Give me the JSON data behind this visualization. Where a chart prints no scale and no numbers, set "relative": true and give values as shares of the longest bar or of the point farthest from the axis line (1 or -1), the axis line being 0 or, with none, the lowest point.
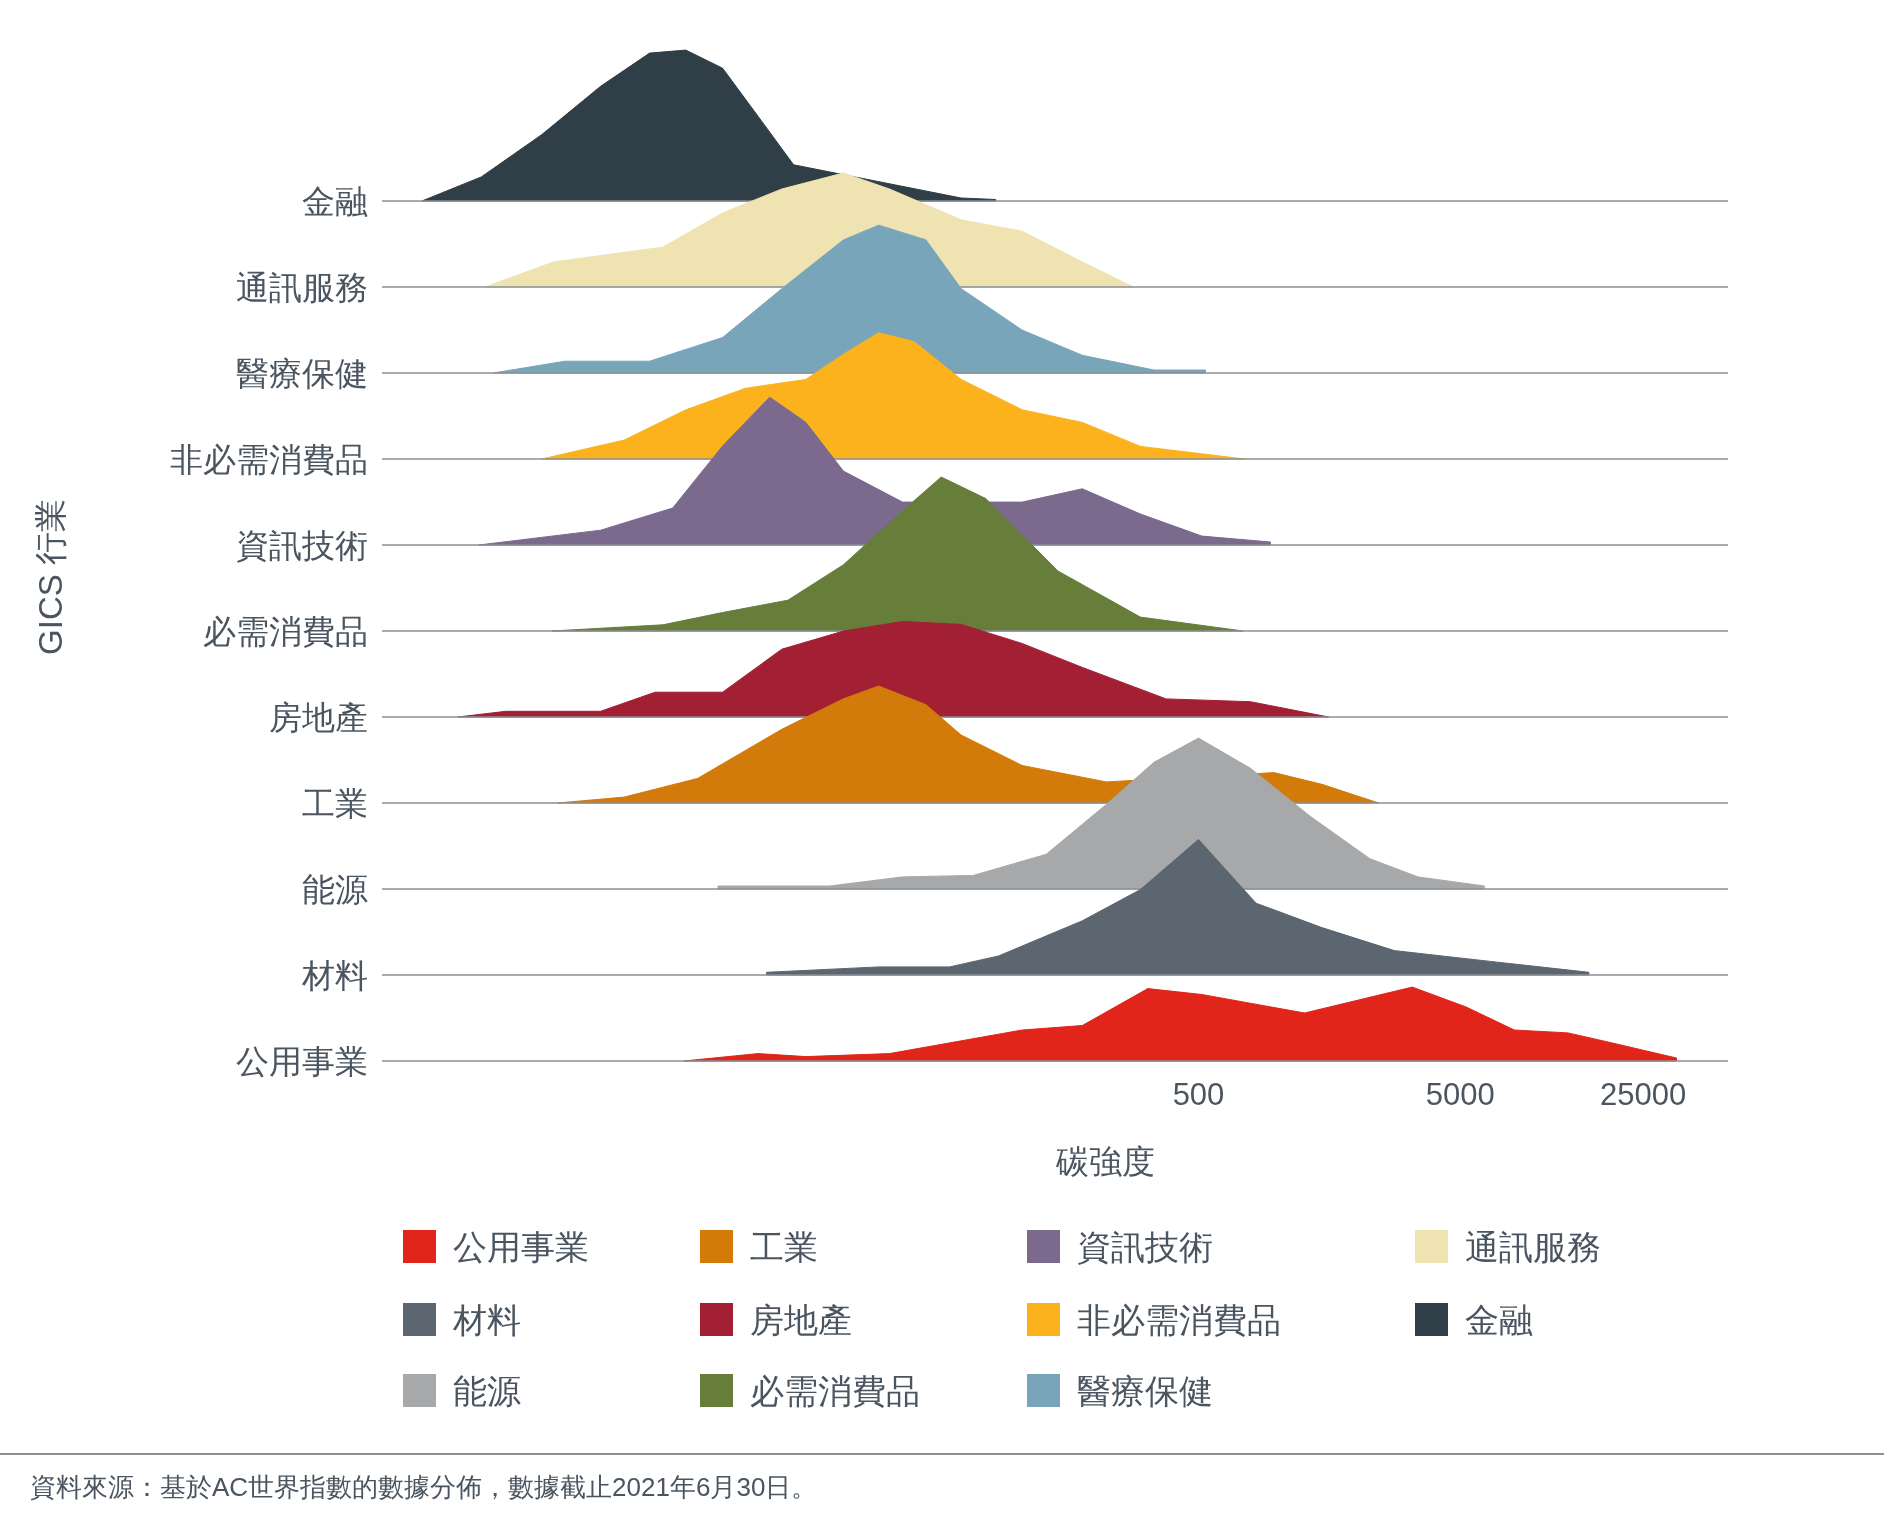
{
  "chart_data": [
    {
      "type": "area",
      "relative": true,
      "log": "x",
      "xlim": [
        0.38,
        52700
      ],
      "tick_labels": false,
      "legend": "bottom",
      "series": [
        {
          "name": "金融",
          "color": "#303e48",
          "x": [
            0.54,
            0.91,
            1.55,
            2.6,
            4.0,
            5.5,
            7.6,
            10.4,
            14.2,
            62,
            84
          ],
          "values": [
            0,
            0.16,
            0.44,
            0.76,
            0.98,
            1.0,
            0.88,
            0.56,
            0.24,
            0.02,
            0.01
          ]
        }
      ]
    },
    {
      "type": "area",
      "relative": true,
      "log": "x",
      "xlim": [
        0.38,
        52700
      ],
      "tick_labels": false,
      "legend": "bottom",
      "series": [
        {
          "name": "通訊服務",
          "color": "#efe3b2",
          "x": [
            0.94,
            1.72,
            4.5,
            7.6,
            12.8,
            22,
            33,
            62,
            106,
            180,
            282
          ],
          "values": [
            0,
            0.22,
            0.35,
            0.65,
            0.86,
            1,
            0.86,
            0.59,
            0.49,
            0.22,
            0
          ]
        }
      ]
    },
    {
      "type": "area",
      "relative": true,
      "log": "x",
      "xlim": [
        0.38,
        52700
      ],
      "tick_labels": false,
      "legend": "bottom",
      "series": [
        {
          "name": "醫療保健",
          "color": "#78a5ba",
          "x": [
            1.01,
            1.9,
            4.0,
            7.6,
            12.8,
            22,
            30,
            45.5,
            62,
            106,
            180,
            338,
            532
          ],
          "values": [
            0,
            0.08,
            0.08,
            0.24,
            0.57,
            0.9,
            1,
            0.9,
            0.57,
            0.29,
            0.12,
            0.02,
            0.02
          ]
        }
      ]
    },
    {
      "type": "area",
      "relative": true,
      "log": "x",
      "xlim": [
        0.38,
        52700
      ],
      "tick_labels": false,
      "legend": "bottom",
      "series": [
        {
          "name": "非必需消費品",
          "color": "#fbb21c",
          "x": [
            1.55,
            3.2,
            5.5,
            9.3,
            15.8,
            22,
            30,
            41,
            62,
            106,
            180,
            300,
            750
          ],
          "values": [
            0,
            0.15,
            0.39,
            0.56,
            0.63,
            0.83,
            1,
            0.93,
            0.63,
            0.39,
            0.29,
            0.1,
            0
          ]
        }
      ]
    },
    {
      "type": "area",
      "relative": true,
      "log": "x",
      "xlim": [
        0.38,
        52700
      ],
      "tick_labels": false,
      "legend": "bottom",
      "series": [
        {
          "name": "資訊技術",
          "color": "#7b6a8e",
          "x": [
            0.89,
            2.6,
            4.9,
            7.6,
            11.5,
            15.8,
            22,
            37,
            106,
            180,
            300,
            515,
            940
          ],
          "values": [
            0,
            0.1,
            0.25,
            0.67,
            1,
            0.83,
            0.5,
            0.29,
            0.29,
            0.38,
            0.21,
            0.06,
            0.02
          ]
        }
      ]
    },
    {
      "type": "area",
      "relative": true,
      "log": "x",
      "xlim": [
        0.38,
        52700
      ],
      "tick_labels": false,
      "legend": "bottom",
      "series": [
        {
          "name": "必需消費品",
          "color": "#677e3b",
          "x": [
            1.69,
            4.5,
            7.6,
            13.5,
            22,
            37,
            52,
            77,
            145,
            300,
            740
          ],
          "values": [
            0,
            0.04,
            0.12,
            0.2,
            0.43,
            0.78,
            1,
            0.86,
            0.39,
            0.09,
            0
          ]
        }
      ]
    },
    {
      "type": "area",
      "relative": true,
      "log": "x",
      "xlim": [
        0.38,
        52700
      ],
      "tick_labels": false,
      "legend": "bottom",
      "series": [
        {
          "name": "房地產",
          "color": "#a31f34",
          "x": [
            0.74,
            1.13,
            2.6,
            4.2,
            7.6,
            12.8,
            22,
            37,
            62,
            106,
            180,
            376,
            790,
            1570
          ],
          "values": [
            0,
            0.06,
            0.06,
            0.26,
            0.26,
            0.71,
            0.9,
            1,
            0.97,
            0.77,
            0.52,
            0.19,
            0.16,
            0
          ]
        }
      ]
    },
    {
      "type": "area",
      "relative": true,
      "log": "x",
      "xlim": [
        0.38,
        52700
      ],
      "tick_labels": false,
      "legend": "bottom",
      "series": [
        {
          "name": "工業",
          "color": "#d27a0a",
          "x": [
            1.78,
            3.2,
            6.1,
            12.8,
            22,
            30,
            45.5,
            62,
            106,
            222,
            970,
            1480,
            2440
          ],
          "values": [
            0,
            0.05,
            0.21,
            0.63,
            0.89,
            1,
            0.84,
            0.58,
            0.32,
            0.18,
            0.26,
            0.16,
            0
          ]
        }
      ]
    },
    {
      "type": "area",
      "relative": true,
      "log": "x",
      "xlim": [
        0.38,
        52700
      ],
      "tick_labels": false,
      "legend": "bottom",
      "series": [
        {
          "name": "能源",
          "color": "#a7a8aa",
          "x": [
            7.3,
            19.5,
            37,
            69,
            131,
            222,
            338,
            500,
            790,
            1340,
            2260,
            3450,
            6180
          ],
          "values": [
            0.02,
            0.02,
            0.08,
            0.09,
            0.23,
            0.56,
            0.84,
            1,
            0.8,
            0.48,
            0.2,
            0.08,
            0.02
          ]
        }
      ]
    },
    {
      "type": "area",
      "relative": true,
      "log": "x",
      "xlim": [
        0.38,
        52700
      ],
      "tick_labels": false,
      "legend": "bottom",
      "series": [
        {
          "name": "材料",
          "color": "#5c6670",
          "x": [
            11.2,
            30,
            56,
            86,
            180,
            300,
            500,
            830,
            1480,
            2800,
            6520,
            15500
          ],
          "values": [
            0.02,
            0.06,
            0.06,
            0.14,
            0.4,
            0.63,
            1,
            0.53,
            0.35,
            0.18,
            0.1,
            0.02
          ]
        }
      ]
    },
    {
      "type": "area",
      "relative": true,
      "log": "x",
      "xlim": [
        0.38,
        52700
      ],
      "xticks": [
        500,
        5000,
        25000
      ],
      "tick_labels": "x",
      "xlabel": "碳強度",
      "legend": "bottom",
      "annotations": [
        "GICS 行業",
        "資料來源：基於AC世界指數的數據分佈，數據截止2021年6月30日。"
      ],
      "series": [
        {
          "name": "公用事業",
          "color": "#e1251b",
          "x": [
            5.4,
            10.4,
            15.8,
            33,
            106,
            180,
            320,
            515,
            1270,
            3280,
            5270,
            8040,
            12900,
            18700,
            33500
          ],
          "values": [
            0,
            0.1,
            0.06,
            0.1,
            0.42,
            0.48,
            0.98,
            0.9,
            0.65,
            1,
            0.73,
            0.42,
            0.38,
            0.25,
            0.04
          ]
        }
      ]
    }
  ]
}
